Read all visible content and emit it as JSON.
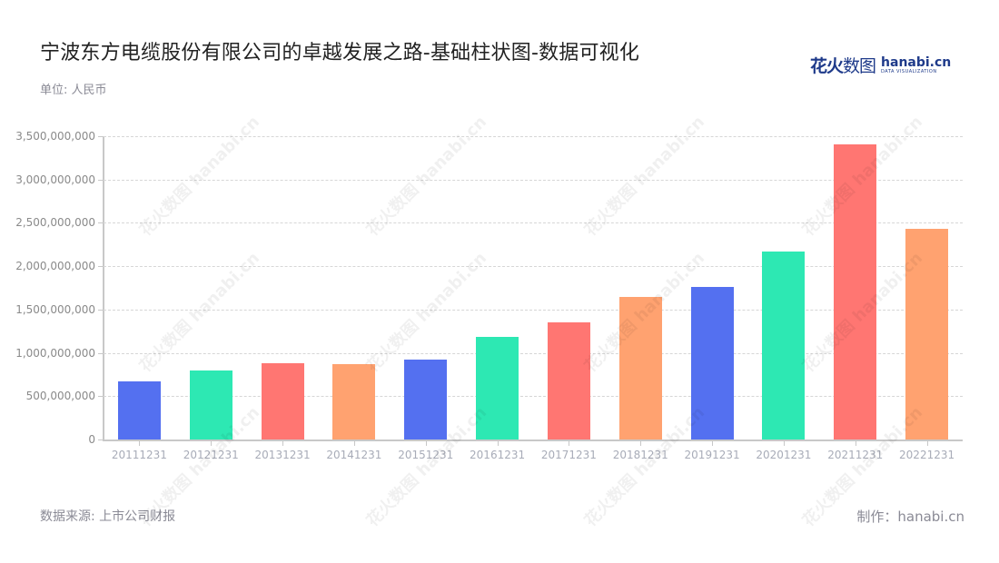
{
  "header": {
    "title": "宁波东方电缆股份有限公司的卓越发展之路-基础柱状图-数据可视化",
    "unit": "单位: 人民币"
  },
  "logo": {
    "cn_bold": "花火",
    "cn_light": "数图",
    "en_main": "hanabi.cn",
    "en_sub": "DATA VISUALIZATION"
  },
  "footer": {
    "source": "数据来源: 上市公司财报",
    "maker": "制作：hanabi.cn"
  },
  "colors": [
    "#5470f0",
    "#2de8b3",
    "#ff7672",
    "#ffa270"
  ],
  "chart_data": {
    "type": "bar",
    "title": "宁波东方电缆股份有限公司的卓越发展之路-基础柱状图-数据可视化",
    "xlabel": "",
    "ylabel": "单位: 人民币",
    "ylim": [
      0,
      3500000000
    ],
    "grid": true,
    "legend": "none",
    "yticks": [
      0,
      500000000,
      1000000000,
      1500000000,
      2000000000,
      2500000000,
      3000000000,
      3500000000
    ],
    "ytick_labels": [
      "0",
      "500,000,000",
      "1,000,000,000",
      "1,500,000,000",
      "2,000,000,000",
      "2,500,000,000",
      "3,000,000,000",
      "3,500,000,000"
    ],
    "categories": [
      "20111231",
      "20121231",
      "20131231",
      "20141231",
      "20151231",
      "20161231",
      "20171231",
      "20181231",
      "20191231",
      "20201231",
      "20211231",
      "20221231"
    ],
    "values": [
      666000000,
      796000000,
      877000000,
      866000000,
      925000000,
      1182000000,
      1351000000,
      1642000000,
      1758000000,
      2166000000,
      3410000000,
      2431000000
    ]
  }
}
